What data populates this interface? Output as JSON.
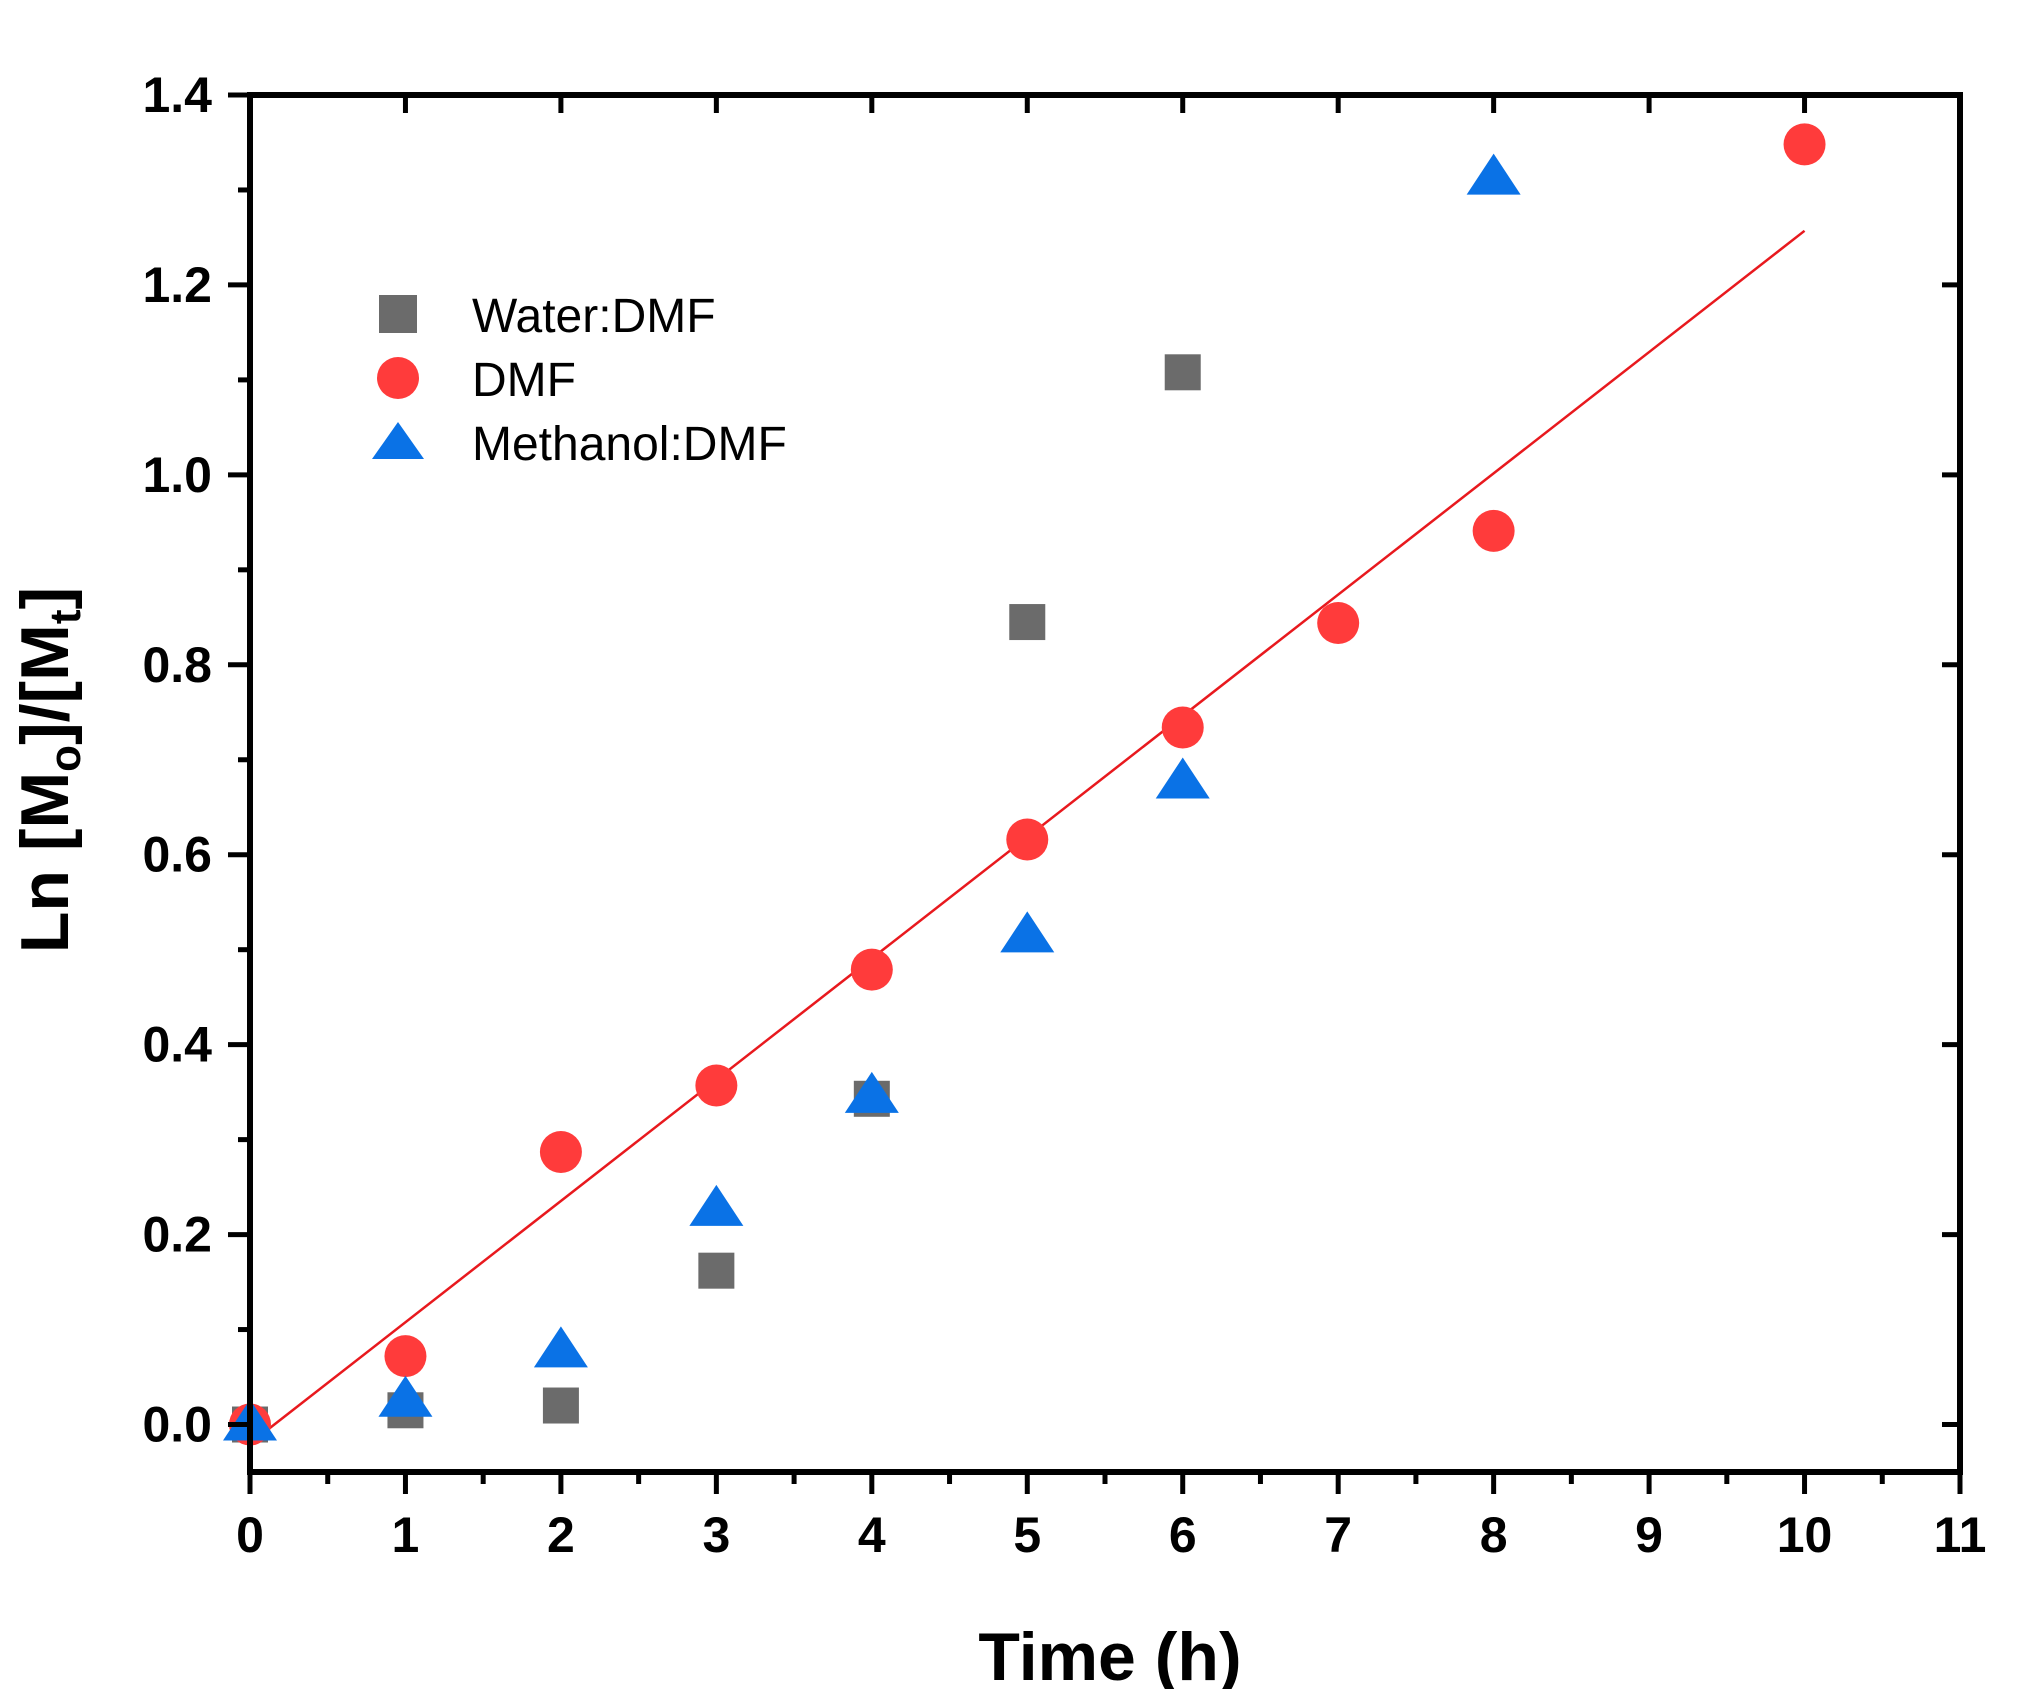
{
  "chart_data": {
    "type": "scatter",
    "xlabel": "Time (h)",
    "ylabel": {
      "prefix": "Ln [M",
      "sub1": "o",
      "mid": "]/[M",
      "sub2": "t",
      "suffix": "]"
    },
    "xlim": [
      0,
      11
    ],
    "ylim": [
      -0.05,
      1.4
    ],
    "x_ticks": [
      0,
      1,
      2,
      3,
      4,
      5,
      6,
      7,
      8,
      9,
      10,
      11
    ],
    "x_tick_labels": [
      "0",
      "1",
      "2",
      "3",
      "4",
      "5",
      "6",
      "7",
      "8",
      "9",
      "10",
      "11"
    ],
    "y_ticks": [
      0.0,
      0.2,
      0.4,
      0.6,
      0.8,
      1.0,
      1.2,
      1.4
    ],
    "y_tick_labels": [
      "0.0",
      "0.2",
      "0.4",
      "0.6",
      "0.8",
      "1.0",
      "1.2",
      "1.4"
    ],
    "legend_position": "upper-left",
    "series": [
      {
        "name": "Water:DMF",
        "marker": "square",
        "color": "#6b6b6b",
        "x": [
          0,
          1,
          2,
          3,
          4,
          5,
          6
        ],
        "y": [
          0.0,
          0.015,
          0.02,
          0.162,
          0.343,
          0.845,
          1.108
        ]
      },
      {
        "name": "DMF",
        "marker": "circle",
        "color": "#ff3b3b",
        "x": [
          0,
          1,
          2,
          3,
          4,
          5,
          6,
          7,
          8,
          10
        ],
        "y": [
          0.0,
          0.072,
          0.287,
          0.357,
          0.479,
          0.616,
          0.734,
          0.844,
          0.941,
          1.348
        ]
      },
      {
        "name": "Methanol:DMF",
        "marker": "triangle",
        "color": "#0a72e6",
        "x": [
          0,
          1,
          2,
          3,
          4,
          5,
          6,
          8
        ],
        "y": [
          0.0,
          0.025,
          0.077,
          0.226,
          0.345,
          0.514,
          0.676,
          1.312
        ]
      }
    ],
    "fit_line": {
      "series": "DMF",
      "color": "#e8191e",
      "x": [
        0,
        10
      ],
      "y": [
        -0.02,
        1.257
      ]
    }
  }
}
